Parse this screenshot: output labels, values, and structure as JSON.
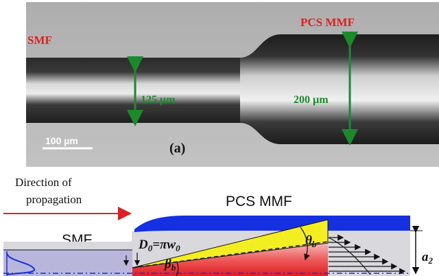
{
  "photo": {
    "smf_label": "SMF",
    "pcs_label": "PCS MMF",
    "dim_small": "125 µm",
    "dim_large": "200 µm",
    "scale_bar": "100 µm",
    "panel_label": "(a)"
  },
  "schematic": {
    "direction_line1": "Direction of",
    "direction_line2": "propagation",
    "pcs_label": "PCS MMF",
    "smf_label": "SMF",
    "d0_label": "D",
    "d0_sub": "0",
    "d0_eq": "=πw",
    "d0_sub2": "0",
    "beta_label": "β",
    "beta_sub": "b",
    "theta_label": "θ",
    "theta_sub": "b",
    "a2_label": "a",
    "a2_sub": "2"
  },
  "colors": {
    "arrow_red": "#e0201e",
    "green": "#1a8a2a",
    "blue_coating": "#1530e0",
    "yellow": "#f2ee22",
    "core_red": "#e8222a",
    "smf_core": "#b9b6dc"
  }
}
